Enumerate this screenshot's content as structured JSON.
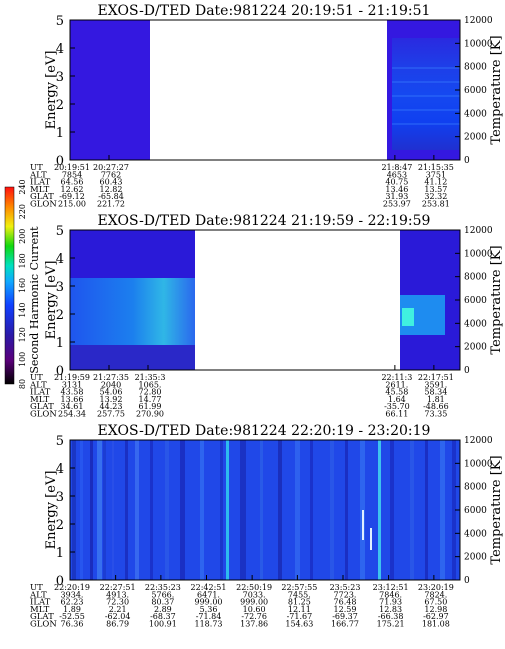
{
  "colorbar": {
    "label": "Second Harmonic Current",
    "ticks": [
      "80",
      "100",
      "120",
      "140",
      "160",
      "180",
      "200",
      "220",
      "240"
    ],
    "range": [
      80,
      240
    ]
  },
  "chart_data": [
    {
      "type": "heatmap",
      "title": "EXOS-D/TED   Date:981224   20:19:51 - 21:19:51",
      "ylabel": "Energy [eV]",
      "y2label": "Temperature [K]",
      "ylim": [
        0,
        5
      ],
      "y2lim": [
        0,
        12000
      ],
      "yticks": [
        "0",
        "1",
        "2",
        "3",
        "4",
        "5"
      ],
      "y2ticks": [
        "0",
        "2000",
        "4000",
        "6000",
        "8000",
        "10000",
        "12000"
      ],
      "row_labels": [
        "UT",
        "ALT",
        "ILAT",
        "MLT",
        "GLAT",
        "GLON"
      ],
      "columns": [
        {
          "frac": 0.0,
          "values": [
            "20:19:51",
            "7854",
            "64.56",
            "12.62",
            "-69.12",
            "215.00"
          ]
        },
        {
          "frac": 0.1,
          "values": [
            "20:27:27",
            "7762",
            "60.43",
            "12.82",
            "-65.84",
            "221.72"
          ]
        },
        {
          "frac": 0.833,
          "values": [
            "21:8:47",
            "4653",
            "40.75",
            "13.46",
            "31.93",
            "253.97"
          ]
        },
        {
          "frac": 0.933,
          "values": [
            "21:15:35",
            "3751",
            "41.12",
            "13.57",
            "32.32",
            "253.81"
          ]
        }
      ]
    },
    {
      "type": "heatmap",
      "title": "EXOS-D/TED   Date:981224   21:19:59 - 22:19:59",
      "ylabel": "Energy [eV]",
      "y2label": "Temperature [K]",
      "ylim": [
        0,
        5
      ],
      "y2lim": [
        0,
        12000
      ],
      "yticks": [
        "0",
        "1",
        "2",
        "3",
        "4",
        "5"
      ],
      "y2ticks": [
        "0",
        "2000",
        "4000",
        "6000",
        "8000",
        "10000",
        "12000"
      ],
      "row_labels": [
        "UT",
        "ALT",
        "ILAT",
        "MLT",
        "GLAT",
        "GLON"
      ],
      "columns": [
        {
          "frac": 0.0,
          "values": [
            "21:19:59",
            "3131",
            "43.58",
            "13.66",
            "34.61",
            "254.34"
          ]
        },
        {
          "frac": 0.1,
          "values": [
            "21:27:35",
            "2040",
            "54.06",
            "13.92",
            "44.23",
            "257.75"
          ]
        },
        {
          "frac": 0.2,
          "values": [
            "21:35:3",
            "1065.",
            "72.80",
            "14.77",
            "61.99",
            "270.90"
          ]
        },
        {
          "frac": 0.833,
          "values": [
            "22:11:3",
            "2611.",
            "45.58",
            "1.64",
            "-35.70",
            "66.11"
          ]
        },
        {
          "frac": 0.933,
          "values": [
            "22:17:51",
            "3591.",
            "58.34",
            "1.81",
            "-48.66",
            "73.35"
          ]
        }
      ]
    },
    {
      "type": "heatmap",
      "title": "EXOS-D/TED   Date:981224   22:20:19 - 23:20:19",
      "ylabel": "Energy [eV]",
      "y2label": "Temperature [K]",
      "ylim": [
        0,
        5
      ],
      "y2lim": [
        0,
        12000
      ],
      "yticks": [
        "0",
        "1",
        "2",
        "3",
        "4",
        "5"
      ],
      "y2ticks": [
        "0",
        "2000",
        "4000",
        "6000",
        "8000",
        "10000",
        "12000"
      ],
      "row_labels": [
        "UT",
        "ALT",
        "ILAT",
        "MLT",
        "GLAT",
        "GLON"
      ],
      "columns": [
        {
          "frac": 0.0,
          "values": [
            "22:20:19",
            "3934.",
            "62.23",
            "1.89",
            "-52.55",
            "76.36"
          ]
        },
        {
          "frac": 0.117,
          "values": [
            "22:27:51",
            "4913.",
            "72.30",
            "2.21",
            "-62.04",
            "86.79"
          ]
        },
        {
          "frac": 0.233,
          "values": [
            "22:35:23",
            "5766.",
            "80.37",
            "2.89",
            "-68.37",
            "100.91"
          ]
        },
        {
          "frac": 0.35,
          "values": [
            "22:42:51",
            "6471.",
            "999.00",
            "5.36",
            "-71.84",
            "118.73"
          ]
        },
        {
          "frac": 0.467,
          "values": [
            "22:50:19",
            "7033.",
            "999.00",
            "10.60",
            "-72.76",
            "137.86"
          ]
        },
        {
          "frac": 0.583,
          "values": [
            "22:57:55",
            "7455.",
            "81.25",
            "12.11",
            "-71.67",
            "154.63"
          ]
        },
        {
          "frac": 0.7,
          "values": [
            "23:5:23",
            "7723.",
            "76.48",
            "12.59",
            "-69.37",
            "166.77"
          ]
        },
        {
          "frac": 0.817,
          "values": [
            "23:12:51",
            "7846.",
            "71.93",
            "12.83",
            "-66.38",
            "175.21"
          ]
        },
        {
          "frac": 0.933,
          "values": [
            "23:20:19",
            "7824.",
            "67.50",
            "12.98",
            "-62.97",
            "181.08"
          ]
        }
      ]
    }
  ]
}
